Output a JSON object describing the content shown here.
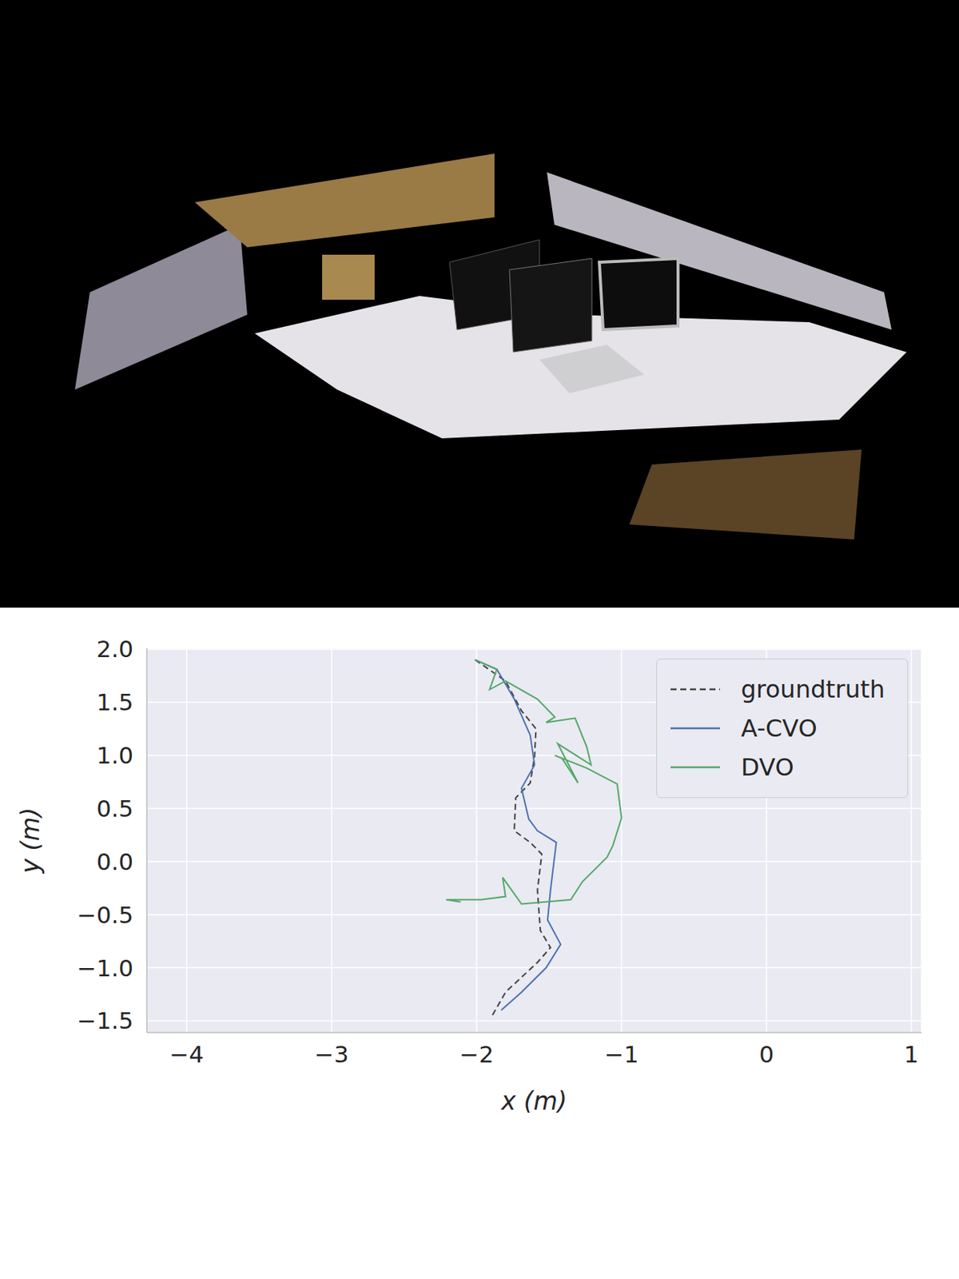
{
  "chart_data": {
    "type": "line",
    "xlabel": "x (m)",
    "ylabel": "y (m)",
    "xlim": [
      -4.275,
      1.07
    ],
    "ylim": [
      -1.61,
      2.01
    ],
    "xticks": [
      {
        "value": -4,
        "label": "−4"
      },
      {
        "value": -3,
        "label": "−3"
      },
      {
        "value": -2,
        "label": "−2"
      },
      {
        "value": -1,
        "label": "−1"
      },
      0,
      1
    ],
    "yticks": [
      {
        "value": -1.5,
        "label": "−1.5"
      },
      {
        "value": -1,
        "label": "−1.0"
      },
      {
        "value": -0.5,
        "label": "−0.5"
      },
      {
        "value": 0,
        "label": "0.0"
      },
      0.5,
      {
        "value": 1,
        "label": "1.0"
      },
      1.5,
      {
        "value": 2,
        "label": "2.0"
      }
    ],
    "grid": true,
    "legend": "upper right",
    "series": [
      {
        "name": "groundtruth",
        "color": "#444444",
        "line_style": "dashed",
        "x": [
          -2.01,
          -1.8,
          -1.69,
          -1.59,
          -1.6,
          -1.63,
          -1.73,
          -1.74,
          -1.63,
          -1.55,
          -1.58,
          -1.56,
          -1.49,
          -1.58,
          -1.8,
          -1.9
        ],
        "values": [
          1.9,
          1.7,
          1.42,
          1.25,
          0.99,
          0.74,
          0.6,
          0.29,
          0.18,
          0.07,
          -0.27,
          -0.65,
          -0.81,
          -0.95,
          -1.23,
          -1.47
        ]
      },
      {
        "name": "A-CVO",
        "color": "#4c72b0",
        "line_style": "solid",
        "x": [
          -2.01,
          -1.86,
          -1.74,
          -1.63,
          -1.6,
          -1.69,
          -1.64,
          -1.58,
          -1.45,
          -1.49,
          -1.51,
          -1.42,
          -1.52,
          -1.69,
          -1.83
        ],
        "values": [
          1.9,
          1.81,
          1.53,
          1.19,
          0.91,
          0.69,
          0.4,
          0.29,
          0.18,
          -0.27,
          -0.55,
          -0.78,
          -1.0,
          -1.23,
          -1.4
        ]
      },
      {
        "name": "DVO",
        "color": "#55a868",
        "line_style": "solid",
        "x": [
          -2.01,
          -1.86,
          -1.91,
          -1.8,
          -1.58,
          -1.46,
          -1.52,
          -1.32,
          -1.24,
          -1.21,
          -1.44,
          -1.3,
          -1.41,
          -1.46,
          -1.24,
          -1.03,
          -1.0,
          -1.06,
          -1.1,
          -1.27,
          -1.35,
          -1.69,
          -1.82,
          -1.8,
          -1.97,
          -2.21,
          -2.11
        ],
        "values": [
          1.9,
          1.81,
          1.62,
          1.7,
          1.53,
          1.36,
          1.31,
          1.35,
          1.08,
          0.91,
          1.11,
          0.74,
          0.97,
          1.0,
          0.88,
          0.73,
          0.41,
          0.15,
          0.04,
          -0.19,
          -0.36,
          -0.4,
          -0.15,
          -0.33,
          -0.36,
          -0.36,
          -0.38
        ]
      }
    ]
  }
}
